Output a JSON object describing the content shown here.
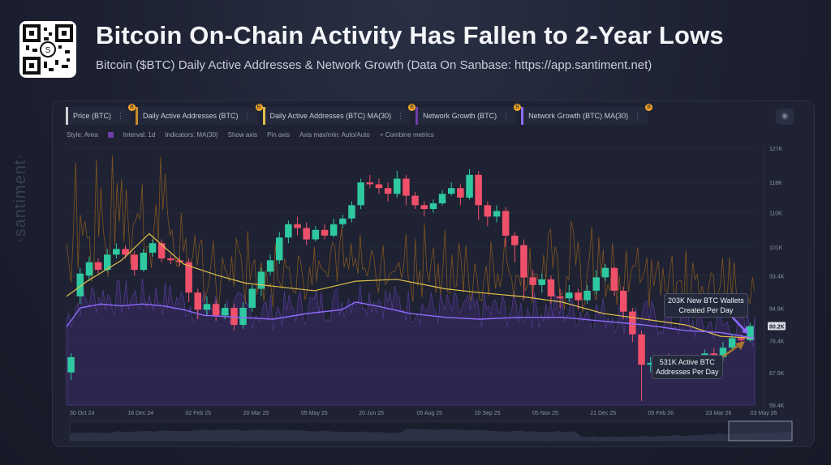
{
  "header": {
    "title": "Bitcoin On-Chain Activity Has Fallen to 2-Year Lows",
    "subtitle": "Bitcoin ($BTC) Daily Active Addresses & Network Growth (Data On Sanbase: https://app.santiment.net)"
  },
  "watermark": "·santiment·",
  "toolbar": {
    "metrics": [
      {
        "label": "Price (BTC)",
        "color": "#d0d0d0"
      },
      {
        "label": "Daily Active Addresses (BTC)",
        "color": "#c98a2b"
      },
      {
        "label": "Daily Active Addresses (BTC) MA(30)",
        "color": "#e0c04a"
      },
      {
        "label": "Network Growth (BTC)",
        "color": "#6f3fa8"
      },
      {
        "label": "Network Growth (BTC) MA(30)",
        "color": "#8f6bff"
      }
    ],
    "options": {
      "style": "Style: Area",
      "interval": "Interval: 1d",
      "indicators": "Indicators: MA(30)",
      "show_axis": "Show axis",
      "pin_axis": "Pin axis",
      "axis_minmax": "Axis max/min: Auto/Auto",
      "combine": "+ Combine metrics"
    }
  },
  "callouts": {
    "network_growth": "203K New BTC Wallets\nCreated Per Day",
    "active_addresses": "531K Active BTC\nAddresses Per Day"
  },
  "chart_data": {
    "type": "line",
    "title": "Bitcoin On-Chain Activity Has Fallen to 2-Year Lows",
    "y_ticks": [
      "127K",
      "118K",
      "110K",
      "101K",
      "93.4K",
      "84.9K",
      "80.2K",
      "76.4K",
      "67.9K",
      "59.4K"
    ],
    "y_tick_values": [
      127000,
      118000,
      110000,
      101000,
      93400,
      84900,
      80200,
      76400,
      67900,
      59400
    ],
    "ylim": [
      59400,
      127000
    ],
    "current_price_label": "80.2K",
    "x_ticks": [
      "30 Oct 24",
      "18 Dec 24",
      "02 Feb 25",
      "20 Mar 25",
      "05 May 25",
      "20 Jun 25",
      "05 Aug 25",
      "20 Sep 25",
      "05 Nov 25",
      "21 Dec 25",
      "05 Feb 26",
      "23 Mar 26",
      "03 May 26"
    ],
    "colors": {
      "up": "#2ec9a0",
      "down": "#f0506a",
      "daa": "#c98a2b",
      "daa_ma": "#e0c04a",
      "ng": "#6f3fa8",
      "ng_ma": "#8f6bff"
    },
    "price_ohlc_weekly": [
      [
        68000,
        72000,
        66000,
        73000
      ],
      [
        88000,
        94000,
        86000,
        95500
      ],
      [
        93500,
        97000,
        92000,
        98500
      ],
      [
        97000,
        95000,
        94000,
        98000
      ],
      [
        95000,
        99000,
        94500,
        100500
      ],
      [
        99000,
        100500,
        98000,
        102000
      ],
      [
        100500,
        99000,
        98000,
        101500
      ],
      [
        99000,
        95000,
        93500,
        100000
      ],
      [
        95000,
        99500,
        94500,
        100500
      ],
      [
        99500,
        102000,
        98500,
        103000
      ],
      [
        102000,
        98000,
        97000,
        103000
      ],
      [
        98000,
        97500,
        96500,
        99000
      ],
      [
        97500,
        97000,
        96000,
        98500
      ],
      [
        97000,
        89000,
        86500,
        98000
      ],
      [
        89000,
        84500,
        82000,
        90000
      ],
      [
        84500,
        86000,
        83000,
        88000
      ],
      [
        86000,
        83000,
        81500,
        87000
      ],
      [
        83000,
        85000,
        82000,
        86000
      ],
      [
        85000,
        80500,
        79000,
        86000
      ],
      [
        80500,
        85000,
        79500,
        86500
      ],
      [
        85000,
        90000,
        84000,
        91000
      ],
      [
        90000,
        94500,
        88000,
        95500
      ],
      [
        94500,
        97500,
        93500,
        99000
      ],
      [
        97500,
        103500,
        96500,
        105000
      ],
      [
        103500,
        107000,
        102000,
        108000
      ],
      [
        107000,
        106000,
        104000,
        109000
      ],
      [
        106000,
        103000,
        101500,
        107500
      ],
      [
        103000,
        105500,
        102500,
        106500
      ],
      [
        105500,
        104000,
        103000,
        107000
      ],
      [
        104000,
        107000,
        103500,
        108500
      ],
      [
        107000,
        108500,
        106000,
        109500
      ],
      [
        108500,
        112000,
        107500,
        113000
      ],
      [
        112000,
        118000,
        111000,
        119000
      ],
      [
        118000,
        117500,
        116500,
        120000
      ],
      [
        117500,
        116500,
        115000,
        119000
      ],
      [
        116500,
        115000,
        113000,
        118000
      ],
      [
        115000,
        119000,
        114000,
        121000
      ],
      [
        119000,
        114500,
        112000,
        120000
      ],
      [
        114500,
        112000,
        111000,
        115500
      ],
      [
        112000,
        111000,
        109000,
        113000
      ],
      [
        111000,
        112500,
        110000,
        113500
      ],
      [
        112500,
        115000,
        112000,
        116000
      ],
      [
        115000,
        116500,
        114500,
        118000
      ],
      [
        116500,
        114000,
        112000,
        117500
      ],
      [
        114000,
        120000,
        113500,
        121500
      ],
      [
        120000,
        112000,
        108000,
        121000
      ],
      [
        112000,
        109000,
        106500,
        113000
      ],
      [
        109000,
        110500,
        107500,
        112000
      ],
      [
        110500,
        104000,
        101000,
        111500
      ],
      [
        104000,
        101500,
        97000,
        105000
      ],
      [
        101500,
        93000,
        87000,
        103000
      ],
      [
        93000,
        91000,
        87500,
        95000
      ],
      [
        91000,
        92500,
        89000,
        94000
      ],
      [
        92500,
        88000,
        86000,
        93500
      ],
      [
        88000,
        87500,
        85000,
        90000
      ],
      [
        87500,
        89000,
        86500,
        91000
      ],
      [
        89000,
        87000,
        84500,
        90000
      ],
      [
        87000,
        89500,
        86000,
        91000
      ],
      [
        89500,
        93000,
        88500,
        95000
      ],
      [
        93000,
        95500,
        92000,
        96500
      ],
      [
        95500,
        89500,
        88000,
        96000
      ],
      [
        89500,
        84000,
        82000,
        90500
      ],
      [
        84000,
        78000,
        76000,
        85000
      ],
      [
        78000,
        70000,
        60500,
        79000
      ],
      [
        70000,
        70500,
        68000,
        72000
      ],
      [
        70500,
        71500,
        69500,
        72500
      ],
      [
        71500,
        70000,
        68500,
        73000
      ],
      [
        70000,
        70500,
        69000,
        72000
      ],
      [
        70500,
        69000,
        67000,
        72000
      ],
      [
        69000,
        71000,
        68000,
        72500
      ],
      [
        71000,
        73000,
        70000,
        74000
      ],
      [
        73000,
        72000,
        70500,
        74500
      ],
      [
        72000,
        74500,
        71000,
        76000
      ],
      [
        74500,
        77000,
        73500,
        78000
      ],
      [
        77000,
        76500,
        75000,
        78000
      ],
      [
        76500,
        80200,
        76000,
        81000
      ]
    ],
    "price_ma30": [
      [
        0,
        88000
      ],
      [
        0.03,
        92000
      ],
      [
        0.08,
        97500
      ],
      [
        0.12,
        104500
      ],
      [
        0.17,
        96500
      ],
      [
        0.22,
        93500
      ],
      [
        0.26,
        91500
      ],
      [
        0.31,
        90500
      ],
      [
        0.36,
        89500
      ],
      [
        0.42,
        92000
      ],
      [
        0.48,
        92500
      ],
      [
        0.55,
        90000
      ],
      [
        0.6,
        89000
      ],
      [
        0.66,
        88000
      ],
      [
        0.72,
        86500
      ],
      [
        0.78,
        83500
      ],
      [
        0.84,
        82000
      ],
      [
        0.9,
        80500
      ],
      [
        0.95,
        77500
      ],
      [
        1.0,
        77000
      ]
    ],
    "network_growth_ma": [
      [
        0,
        80000
      ],
      [
        0.02,
        85000
      ],
      [
        0.05,
        86000
      ],
      [
        0.08,
        85500
      ],
      [
        0.11,
        86000
      ],
      [
        0.14,
        85500
      ],
      [
        0.17,
        84500
      ],
      [
        0.2,
        83000
      ],
      [
        0.25,
        82500
      ],
      [
        0.3,
        82000
      ],
      [
        0.35,
        83500
      ],
      [
        0.4,
        84500
      ],
      [
        0.42,
        86500
      ],
      [
        0.45,
        85500
      ],
      [
        0.5,
        83500
      ],
      [
        0.55,
        82500
      ],
      [
        0.6,
        82000
      ],
      [
        0.66,
        82500
      ],
      [
        0.72,
        82500
      ],
      [
        0.78,
        81500
      ],
      [
        0.84,
        80500
      ],
      [
        0.9,
        79000
      ],
      [
        0.95,
        78500
      ],
      [
        1.0,
        77000
      ]
    ]
  }
}
